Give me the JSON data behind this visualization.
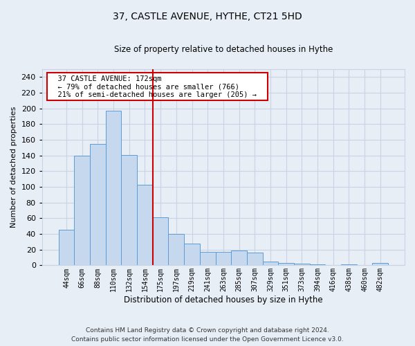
{
  "title": "37, CASTLE AVENUE, HYTHE, CT21 5HD",
  "subtitle": "Size of property relative to detached houses in Hythe",
  "xlabel": "Distribution of detached houses by size in Hythe",
  "ylabel": "Number of detached properties",
  "footer_line1": "Contains HM Land Registry data © Crown copyright and database right 2024.",
  "footer_line2": "Contains public sector information licensed under the Open Government Licence v3.0.",
  "annotation_title": "37 CASTLE AVENUE: 172sqm",
  "annotation_line1": "← 79% of detached houses are smaller (766)",
  "annotation_line2": "21% of semi-detached houses are larger (205) →",
  "bar_labels": [
    "44sqm",
    "66sqm",
    "88sqm",
    "110sqm",
    "132sqm",
    "154sqm",
    "175sqm",
    "197sqm",
    "219sqm",
    "241sqm",
    "263sqm",
    "285sqm",
    "307sqm",
    "329sqm",
    "351sqm",
    "373sqm",
    "394sqm",
    "416sqm",
    "438sqm",
    "460sqm",
    "482sqm"
  ],
  "bar_values": [
    45,
    140,
    155,
    197,
    141,
    103,
    61,
    40,
    28,
    17,
    17,
    19,
    16,
    5,
    3,
    2,
    1,
    0,
    1,
    0,
    3
  ],
  "bar_color": "#c5d8ed",
  "bar_edge_color": "#5b9bd5",
  "vline_color": "#cc0000",
  "vline_x_index": 6,
  "annotation_box_color": "#ffffff",
  "annotation_box_edge": "#cc0000",
  "grid_color": "#c8d4e4",
  "background_color": "#e8eef6",
  "ylim": [
    0,
    250
  ],
  "yticks": [
    0,
    20,
    40,
    60,
    80,
    100,
    120,
    140,
    160,
    180,
    200,
    220,
    240
  ]
}
